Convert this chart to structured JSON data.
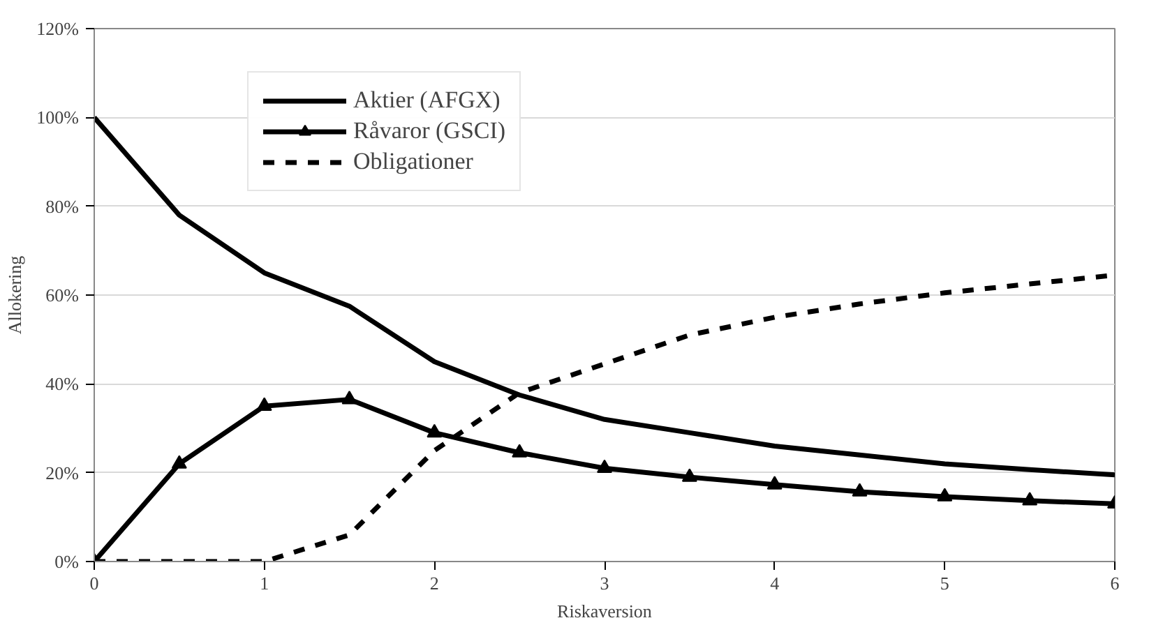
{
  "chart_data": {
    "type": "line",
    "xlabel": "Riskaversion",
    "ylabel": "Allokering",
    "x": [
      0,
      0.5,
      1,
      1.5,
      2,
      2.5,
      3,
      3.5,
      4,
      4.5,
      5,
      5.5,
      6
    ],
    "xlim": [
      0,
      6
    ],
    "xticks": [
      0,
      1,
      2,
      3,
      4,
      5,
      6
    ],
    "ylim": [
      0,
      120
    ],
    "yticks": [
      {
        "value": 0,
        "label": "0%"
      },
      {
        "value": 20,
        "label": "20%"
      },
      {
        "value": 40,
        "label": "40%"
      },
      {
        "value": 60,
        "label": "60%"
      },
      {
        "value": 80,
        "label": "80%"
      },
      {
        "value": 100,
        "label": "100%"
      },
      {
        "value": 120,
        "label": "120%"
      }
    ],
    "grid": "y",
    "legend": "top left",
    "series": [
      {
        "name": "Aktier (AFGX)",
        "color": "#000000",
        "marker": "none",
        "line_style": "solid",
        "values": [
          100,
          78,
          65,
          57.5,
          45,
          37.5,
          32,
          29,
          26,
          24,
          22,
          20.7,
          19.5
        ]
      },
      {
        "name": "Råvaror (GSCI)",
        "color": "#000000",
        "marker": "triangle",
        "line_style": "solid",
        "values": [
          0,
          22,
          35,
          36.5,
          29,
          24.5,
          21,
          19,
          17.3,
          15.7,
          14.6,
          13.7,
          13
        ]
      },
      {
        "name": "Obligationer",
        "color": "#000000",
        "marker": "none",
        "line_style": "dashed",
        "values": [
          0,
          0,
          0,
          6,
          25,
          38,
          44.5,
          51,
          55,
          58,
          60.5,
          62.5,
          64.5
        ]
      }
    ]
  }
}
